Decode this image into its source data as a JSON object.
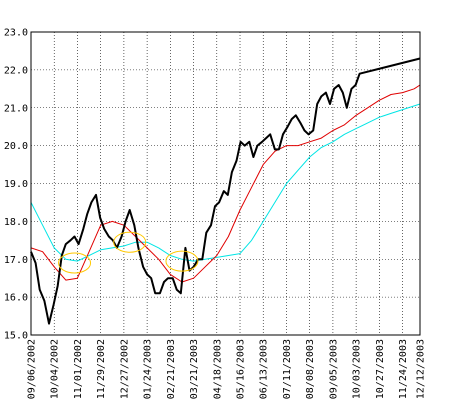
{
  "chart_data": {
    "type": "line",
    "title": "",
    "xlabel": "",
    "ylabel": "",
    "grid": true,
    "ylim": [
      15.0,
      23.0
    ],
    "y_ticks": [
      "15.0",
      "16.0",
      "17.0",
      "18.0",
      "19.0",
      "20.0",
      "21.0",
      "22.0",
      "23.0"
    ],
    "x_ticks": [
      "09/06/2002",
      "10/04/2002",
      "11/01/2002",
      "11/29/2002",
      "12/27/2002",
      "01/24/2003",
      "02/21/2003",
      "03/21/2003",
      "04/18/2003",
      "05/16/2003",
      "06/13/2003",
      "07/11/2003",
      "08/08/2003",
      "09/05/2003",
      "10/03/2003",
      "10/27/2003",
      "11/24/2003",
      "12/12/2003"
    ],
    "x_tick_positions": [
      0,
      4,
      8,
      12,
      16,
      20,
      24,
      28,
      32,
      36,
      40,
      44,
      48,
      52,
      56,
      60,
      64,
      67
    ],
    "series": [
      {
        "color": "#000000",
        "values": [
          17.2,
          16.9,
          16.2,
          15.9,
          15.3,
          15.8,
          16.3,
          17.1,
          17.4,
          17.5,
          17.6,
          17.4,
          17.8,
          18.2,
          18.5,
          18.7,
          18.1,
          17.8,
          17.6,
          17.5,
          17.3,
          17.6,
          18.0,
          18.3,
          17.9,
          17.3,
          16.8,
          16.6,
          16.5,
          16.1,
          16.1,
          16.4,
          16.5,
          16.5,
          16.2,
          16.1,
          17.3,
          16.7,
          16.8,
          17.0,
          17.0,
          17.7,
          17.9,
          18.4,
          18.5,
          18.8,
          18.7,
          19.3,
          19.6,
          20.1,
          20.0,
          20.1,
          19.7,
          20.0,
          20.1,
          20.2,
          20.3,
          19.9,
          19.9,
          20.3,
          20.5,
          20.7,
          20.8,
          20.6,
          20.4,
          20.3,
          20.4,
          21.1,
          21.3,
          21.4,
          21.1,
          21.5,
          21.6,
          21.4,
          21.0,
          21.5,
          21.6,
          21.9,
          22.3
        ],
        "x": [
          0,
          0.8,
          1.5,
          2.3,
          3.1,
          3.9,
          4.6,
          5.3,
          6.0,
          6.8,
          7.5,
          8.2,
          9.0,
          9.7,
          10.4,
          11.2,
          11.9,
          12.6,
          13.4,
          14.1,
          14.8,
          15.6,
          16.3,
          17.0,
          17.8,
          18.5,
          19.3,
          20.0,
          20.7,
          21.4,
          22.2,
          22.9,
          23.6,
          24.4,
          25.1,
          25.8,
          26.6,
          27.3,
          28.0,
          28.8,
          29.5,
          30.2,
          31.0,
          31.7,
          32.4,
          33.2,
          33.9,
          34.6,
          35.4,
          36.1,
          36.8,
          37.6,
          38.3,
          39.0,
          39.8,
          40.5,
          41.2,
          42.0,
          42.7,
          43.4,
          44.2,
          44.9,
          45.6,
          46.4,
          47.1,
          47.8,
          48.6,
          49.3,
          50.0,
          50.8,
          51.5,
          52.2,
          53.0,
          53.7,
          54.4,
          55.2,
          55.9,
          56.6,
          67.0
        ]
      },
      {
        "color": "#e00000",
        "x": [
          0,
          2,
          4,
          6,
          8,
          10,
          12,
          14,
          16,
          18,
          20,
          22,
          24,
          26,
          28,
          30,
          32,
          34,
          36,
          38,
          40,
          42,
          44,
          46,
          48,
          50,
          52,
          54,
          56,
          58,
          60,
          62,
          64,
          66,
          67
        ],
        "values": [
          17.3,
          17.2,
          16.8,
          16.45,
          16.5,
          17.2,
          17.9,
          18.0,
          17.9,
          17.6,
          17.3,
          17.0,
          16.6,
          16.4,
          16.5,
          16.8,
          17.1,
          17.6,
          18.3,
          18.9,
          19.5,
          19.85,
          20.0,
          20.0,
          20.1,
          20.2,
          20.4,
          20.55,
          20.8,
          21.0,
          21.2,
          21.35,
          21.4,
          21.5,
          21.6
        ]
      },
      {
        "color": "#00e5e5",
        "x": [
          0,
          2,
          4,
          6,
          8,
          10,
          12,
          14,
          16,
          18,
          20,
          22,
          24,
          26,
          28,
          30,
          32,
          34,
          36,
          38,
          40,
          42,
          44,
          46,
          48,
          50,
          52,
          54,
          56,
          58,
          60,
          62,
          64,
          66,
          67
        ],
        "values": [
          18.5,
          17.9,
          17.3,
          17.0,
          16.95,
          17.1,
          17.25,
          17.3,
          17.35,
          17.45,
          17.45,
          17.3,
          17.1,
          17.0,
          16.95,
          17.0,
          17.05,
          17.1,
          17.15,
          17.5,
          18.0,
          18.5,
          19.0,
          19.35,
          19.7,
          19.95,
          20.1,
          20.3,
          20.45,
          20.6,
          20.75,
          20.85,
          20.95,
          21.05,
          21.1
        ]
      }
    ],
    "annotations": [
      {
        "shape": "ellipse",
        "color": "#ffc800",
        "x": 7.5,
        "y": 16.9
      },
      {
        "shape": "ellipse",
        "color": "#ffc800",
        "x": 17.0,
        "y": 17.45
      },
      {
        "shape": "ellipse",
        "color": "#ffc800",
        "x": 26.0,
        "y": 16.95
      }
    ]
  }
}
